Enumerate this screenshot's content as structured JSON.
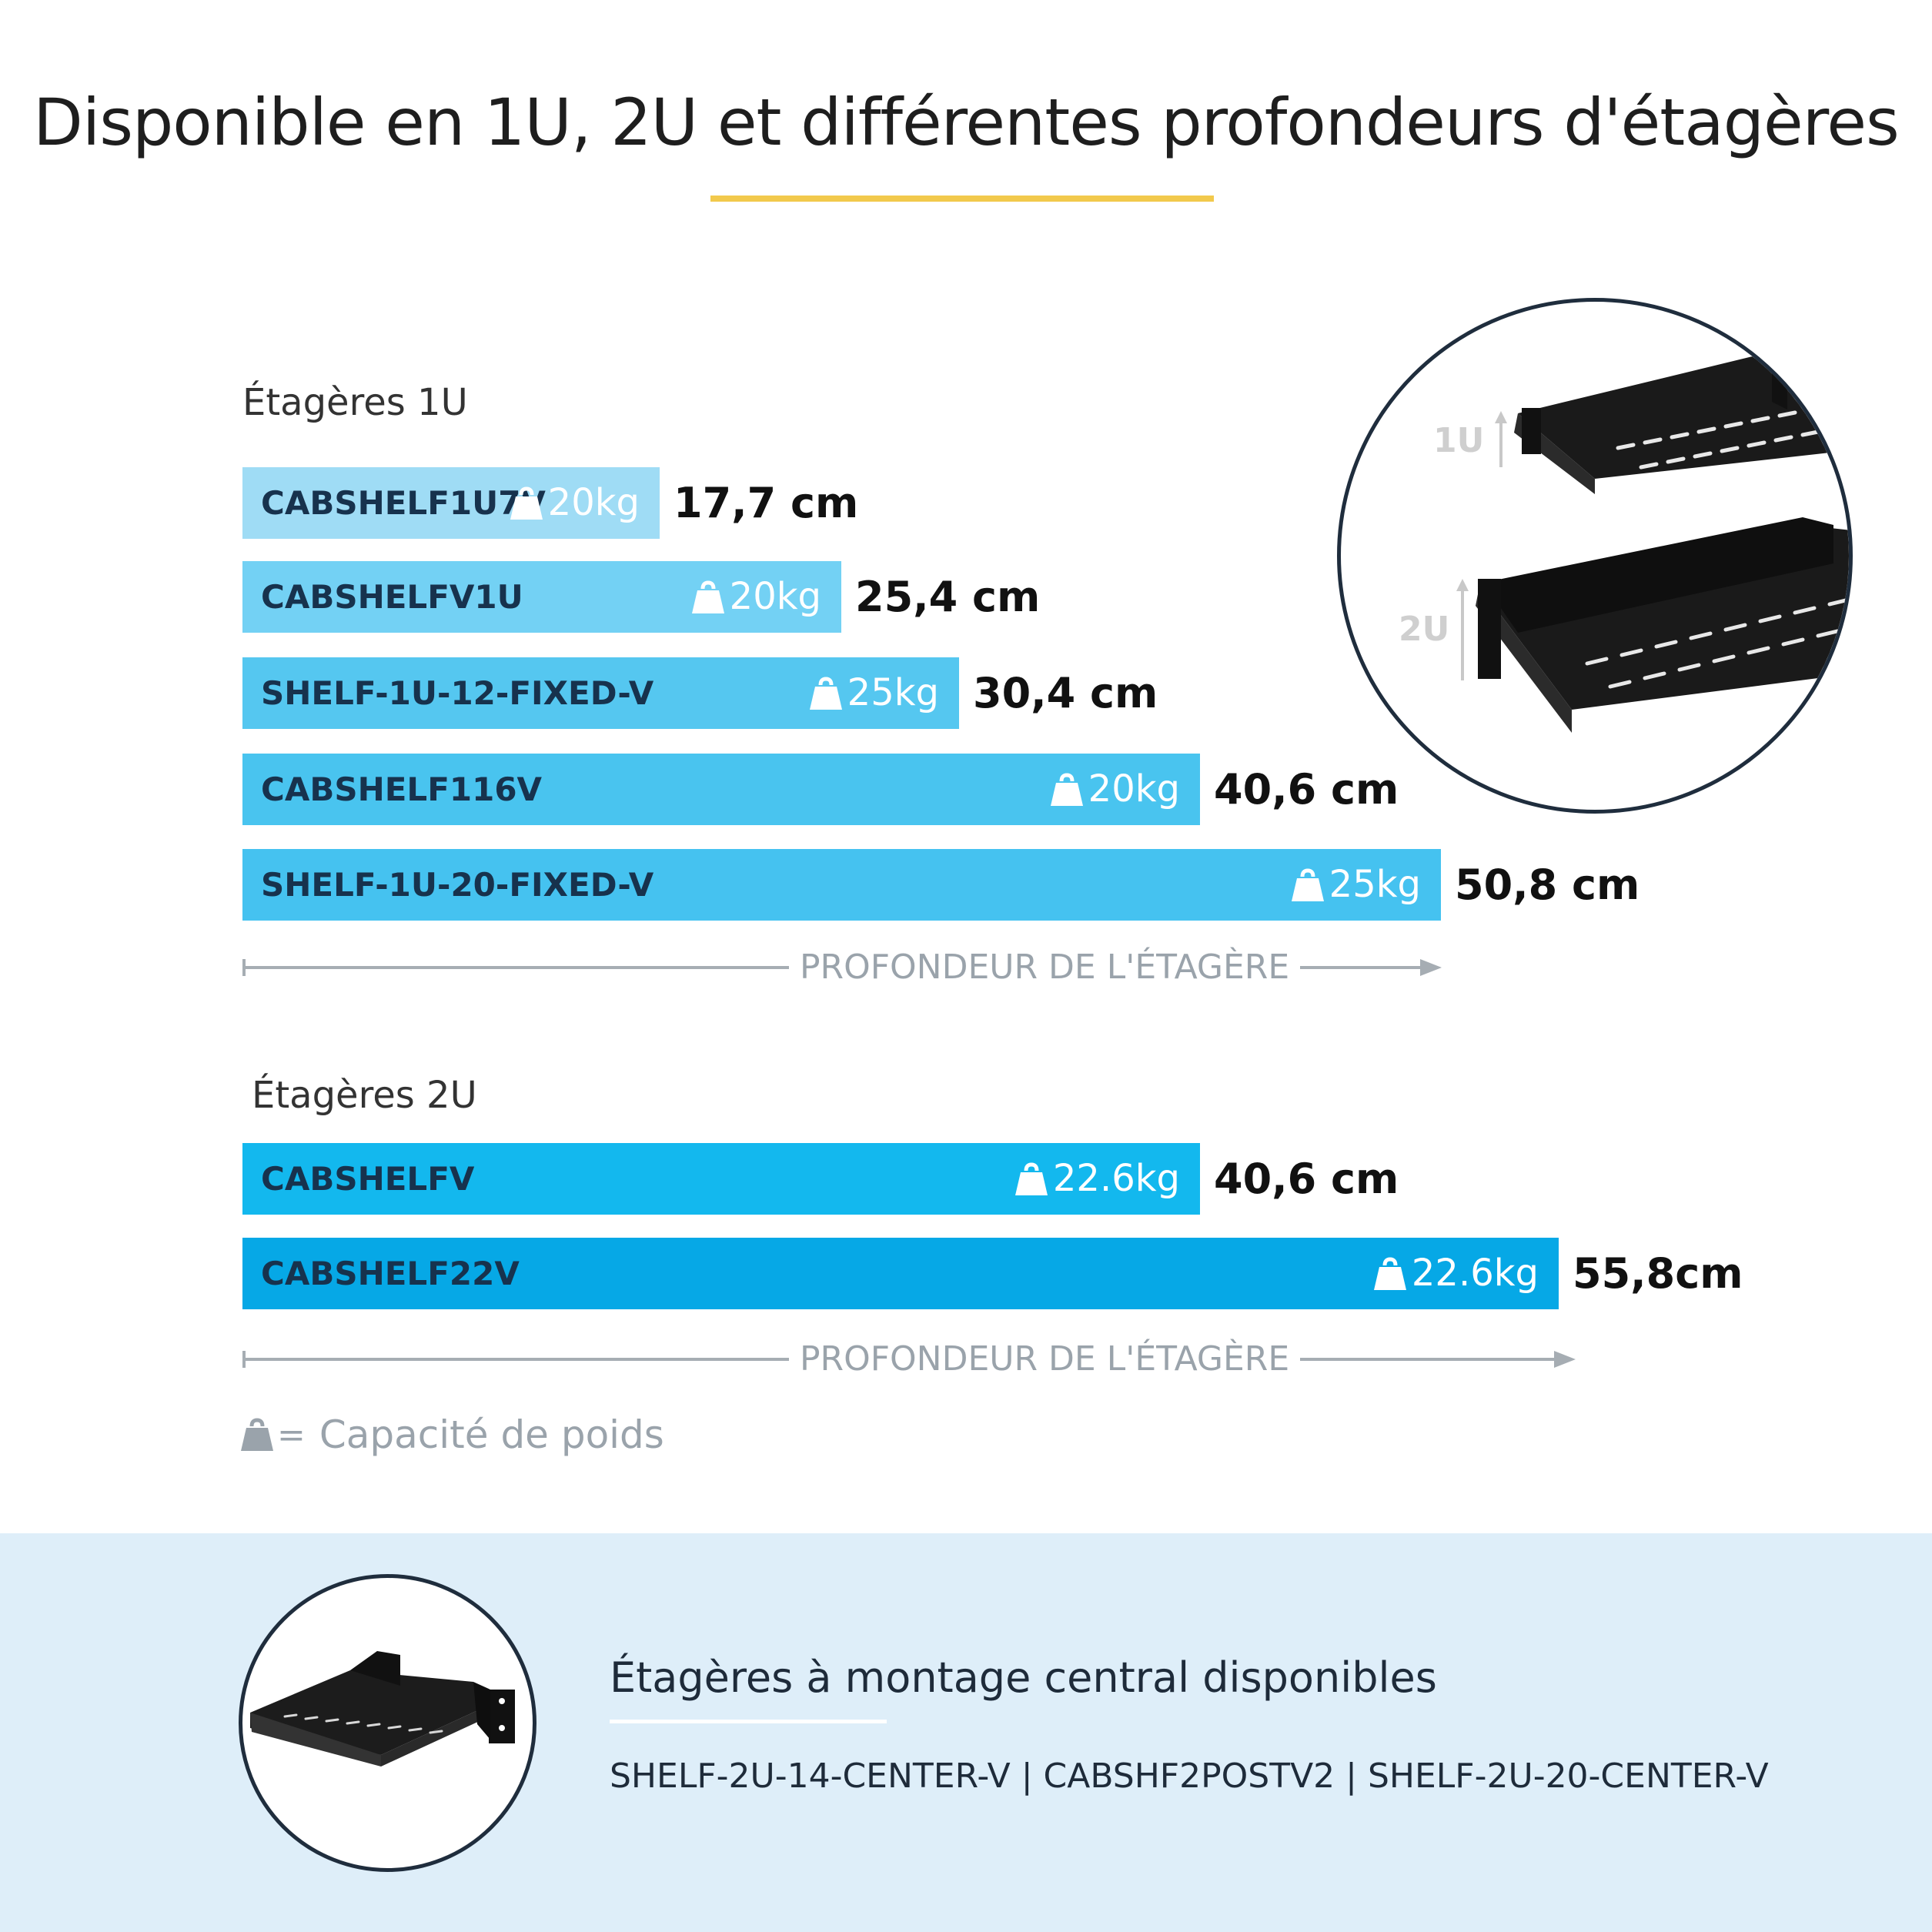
{
  "page": {
    "title": "Disponible en 1U, 2U et différentes profondeurs d'étagères",
    "accent_color": "#f2c94c"
  },
  "chart_data": [
    {
      "type": "bar",
      "orientation": "horizontal",
      "title": "Étagères 1U",
      "xlabel": "PROFONDEUR DE L'ÉTAGÈRE",
      "xlim": [
        0,
        50.8
      ],
      "bars": [
        {
          "name": "CABSHELF1U7V",
          "weight": "20kg",
          "depth_label": "17,7 cm",
          "depth": 17.7,
          "color": "#9fdcf5"
        },
        {
          "name": "CABSHELFV1U",
          "weight": "20kg",
          "depth_label": "25,4 cm",
          "depth": 25.4,
          "color": "#73d1f4"
        },
        {
          "name": "SHELF-1U-12-FIXED-V",
          "weight": "25kg",
          "depth_label": "30,4 cm",
          "depth": 30.4,
          "color": "#55c7f0"
        },
        {
          "name": "CABSHELF116V",
          "weight": "20kg",
          "depth_label": "40,6 cm",
          "depth": 40.6,
          "color": "#49c4ef"
        },
        {
          "name": "SHELF-1U-20-FIXED-V",
          "weight": "25kg",
          "depth_label": "50,8 cm",
          "depth": 50.8,
          "color": "#45c2f0"
        }
      ]
    },
    {
      "type": "bar",
      "orientation": "horizontal",
      "title": "Étagères 2U",
      "xlabel": "PROFONDEUR DE L'ÉTAGÈRE",
      "xlim": [
        0,
        55.8
      ],
      "bars": [
        {
          "name": "CABSHELFV",
          "weight": "22.6kg",
          "depth_label": "40,6 cm",
          "depth": 40.6,
          "color": "#13b8ee"
        },
        {
          "name": "CABSHELF22V",
          "weight": "22.6kg",
          "depth_label": "55,8cm",
          "depth": 55.8,
          "color": "#06a8e6"
        }
      ]
    }
  ],
  "legend": {
    "equals": "=",
    "text": "Capacité de poids",
    "icon": "weight-icon"
  },
  "inset_photo": {
    "label_1u": "1U",
    "label_2u": "2U"
  },
  "bottom": {
    "title": "Étagères à montage central disponibles",
    "models": "SHELF-2U-14-CENTER-V | CABSHF2POSTV2 | SHELF-2U-20-CENTER-V",
    "background": "#deeef9"
  }
}
